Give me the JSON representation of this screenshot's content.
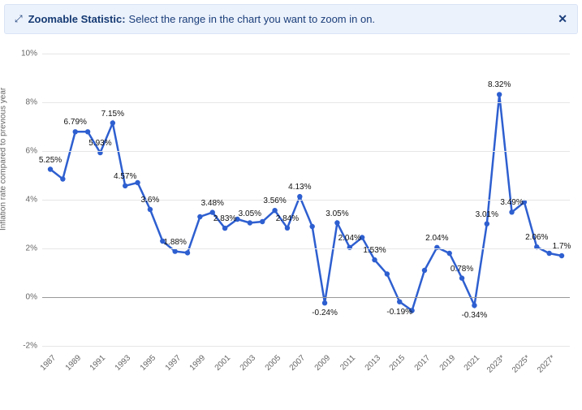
{
  "banner": {
    "title": "Zoomable Statistic:",
    "text": "Select the range in the chart you want to zoom in on."
  },
  "chart": {
    "type": "line",
    "ylabel": "Inflation rate compared to previous year",
    "ylim": [
      -2,
      10
    ],
    "ytick_step": 2,
    "ytick_suffix": "%",
    "line_color": "#2e5fd0",
    "marker_color": "#2e5fd0",
    "line_width": 2.5,
    "marker_r": 3.2,
    "grid_color": "#e6e6e6",
    "zero_color": "#999999",
    "years": [
      "1987",
      "1989",
      "1991",
      "1993",
      "1995",
      "1997",
      "1999",
      "2001",
      "2003",
      "2005",
      "2007",
      "2009",
      "2011",
      "2013",
      "2015",
      "2017",
      "2019",
      "2021",
      "2023*",
      "2025*",
      "2027*"
    ],
    "points": [
      {
        "y": 5.25,
        "label": "5.25%"
      },
      {
        "y": 4.85
      },
      {
        "y": 6.79,
        "label": "6.79%"
      },
      {
        "y": 6.79
      },
      {
        "y": 5.93,
        "label": "5.93%"
      },
      {
        "y": 7.15,
        "label": "7.15%"
      },
      {
        "y": 4.57,
        "label": "4.57%"
      },
      {
        "y": 4.7
      },
      {
        "y": 3.6,
        "label": "3.6%"
      },
      {
        "y": 2.3
      },
      {
        "y": 1.88,
        "label": "1.88%"
      },
      {
        "y": 1.82
      },
      {
        "y": 3.3
      },
      {
        "y": 3.48,
        "label": "3.48%"
      },
      {
        "y": 2.83,
        "label": "2.83%"
      },
      {
        "y": 3.2
      },
      {
        "y": 3.05,
        "label": "3.05%"
      },
      {
        "y": 3.1
      },
      {
        "y": 3.56,
        "label": "3.56%"
      },
      {
        "y": 2.84,
        "label": "2.84%"
      },
      {
        "y": 4.13,
        "label": "4.13%"
      },
      {
        "y": 2.9
      },
      {
        "y": -0.24,
        "label": "-0.24%"
      },
      {
        "y": 3.05,
        "label": "3.05%"
      },
      {
        "y": 2.04,
        "label": "2.04%"
      },
      {
        "y": 2.45
      },
      {
        "y": 1.53,
        "label": "1.53%"
      },
      {
        "y": 0.95
      },
      {
        "y": -0.19,
        "label": "-0.19%"
      },
      {
        "y": -0.55
      },
      {
        "y": 1.1
      },
      {
        "y": 2.04,
        "label": "2.04%"
      },
      {
        "y": 1.8
      },
      {
        "y": 0.78,
        "label": "0.78%"
      },
      {
        "y": -0.34,
        "label": "-0.34%"
      },
      {
        "y": 3.01,
        "label": "3.01%"
      },
      {
        "y": 8.32,
        "label": "8.32%"
      },
      {
        "y": 3.49,
        "label": "3.49%"
      },
      {
        "y": 3.9
      },
      {
        "y": 2.06,
        "label": "2.06%"
      },
      {
        "y": 1.8
      },
      {
        "y": 1.7,
        "label": "1.7%"
      }
    ]
  }
}
